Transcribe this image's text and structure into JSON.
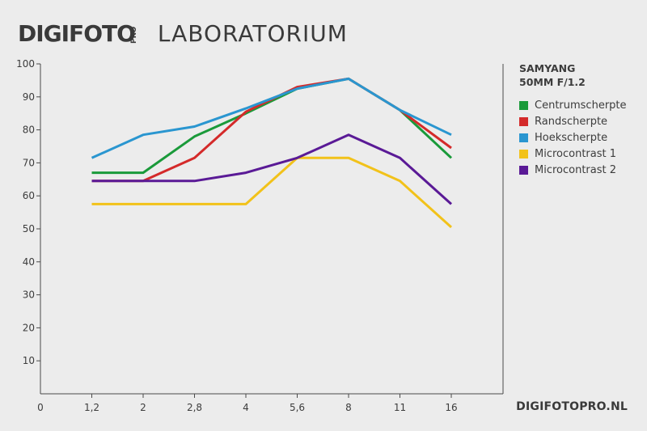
{
  "header": {
    "brand": "DIGIFOTO",
    "brand_pro": "PRO",
    "section": "LABORATORIUM"
  },
  "footer": "DIGIFOTOPRO.NL",
  "chart_data": {
    "type": "line",
    "title": "SAMYANG 50MM F/1.2",
    "title_lines": [
      "SAMYANG",
      "50MM F/1.2"
    ],
    "categories": [
      "0",
      "1,2",
      "2",
      "2,8",
      "4",
      "5,6",
      "8",
      "11",
      "16"
    ],
    "ylim": [
      0,
      100
    ],
    "yticks": [
      10,
      20,
      30,
      40,
      50,
      60,
      70,
      80,
      90,
      100
    ],
    "grid": false,
    "legend_position": "right",
    "series": [
      {
        "name": "Centrumscherpte",
        "color": "#1a9a3a",
        "values": [
          null,
          67,
          67,
          78,
          85,
          92.5,
          95.5,
          86,
          71.5
        ]
      },
      {
        "name": "Randscherpte",
        "color": "#d42a2a",
        "values": [
          null,
          64.5,
          64.5,
          71.5,
          85.5,
          93,
          95.5,
          86,
          74.5
        ]
      },
      {
        "name": "Hoekscherpte",
        "color": "#2a96d0",
        "values": [
          null,
          71.5,
          78.5,
          81,
          86.5,
          92.5,
          95.5,
          86,
          78.5
        ]
      },
      {
        "name": "Microcontrast 1",
        "color": "#f2c21a",
        "values": [
          null,
          57.5,
          57.5,
          57.5,
          57.5,
          71.5,
          71.5,
          64.5,
          50.5
        ]
      },
      {
        "name": "Microcontrast 2",
        "color": "#5a1a96",
        "values": [
          null,
          64.5,
          64.5,
          64.5,
          67,
          71.5,
          78.5,
          71.5,
          57.5
        ]
      }
    ]
  }
}
